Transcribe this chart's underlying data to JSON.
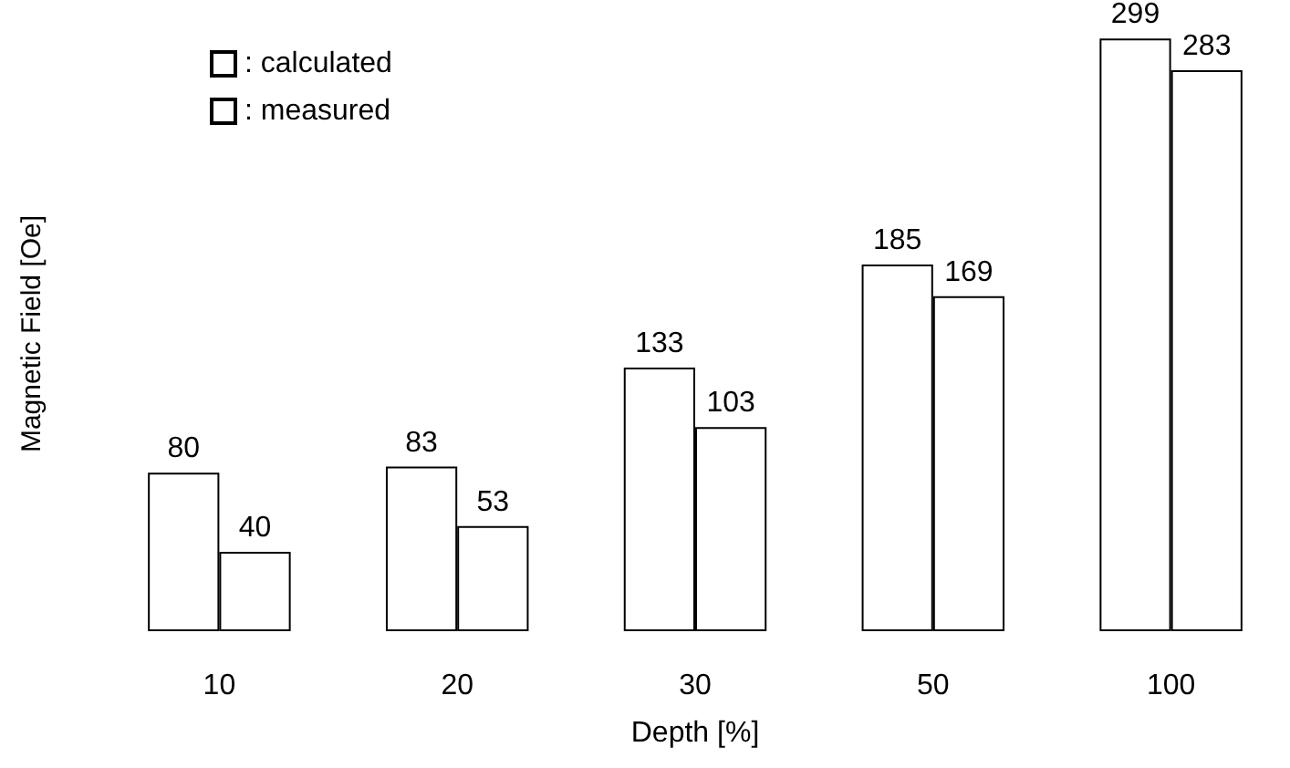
{
  "chart_data": {
    "type": "bar",
    "xlabel": "Depth [%]",
    "ylabel": "Magnetic Field [Oe]",
    "categories": [
      "10",
      "20",
      "30",
      "50",
      "100"
    ],
    "series": [
      {
        "name": ": calculated",
        "color": "#ffffff",
        "values": [
          80,
          83,
          133,
          185,
          299
        ]
      },
      {
        "name": ": measured",
        "color": "#ffffff",
        "values": [
          40,
          53,
          103,
          169,
          283
        ]
      }
    ],
    "data_labels": true,
    "legend": "top left",
    "grid": false
  }
}
